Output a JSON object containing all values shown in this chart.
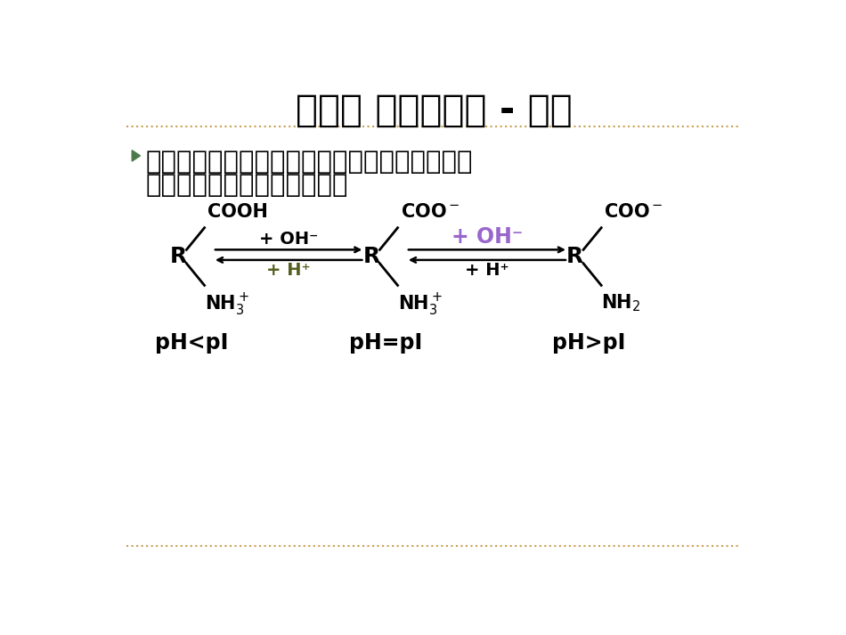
{
  "title": "第四章 电泳分析法 - 概述",
  "title_fontsize": 30,
  "title_color": "#000000",
  "bg_color": "#ffffff",
  "separator_color": "#c8a050",
  "bullet_color": "#4a7a4a",
  "bullet_text_line1": "定义：电泳是指带电粒子在电场中向与其自身带",
  "bullet_text_line2": "相反电荷的电极移动的现象。",
  "bullet_fontsize": 21,
  "body_text_color": "#000000",
  "diagram_fontsize": 15,
  "ph_label_fontsize": 17,
  "oh_black_color": "#000000",
  "h_olive_color": "#556020",
  "oh_purple_color": "#9966cc",
  "h_black2_color": "#000000"
}
